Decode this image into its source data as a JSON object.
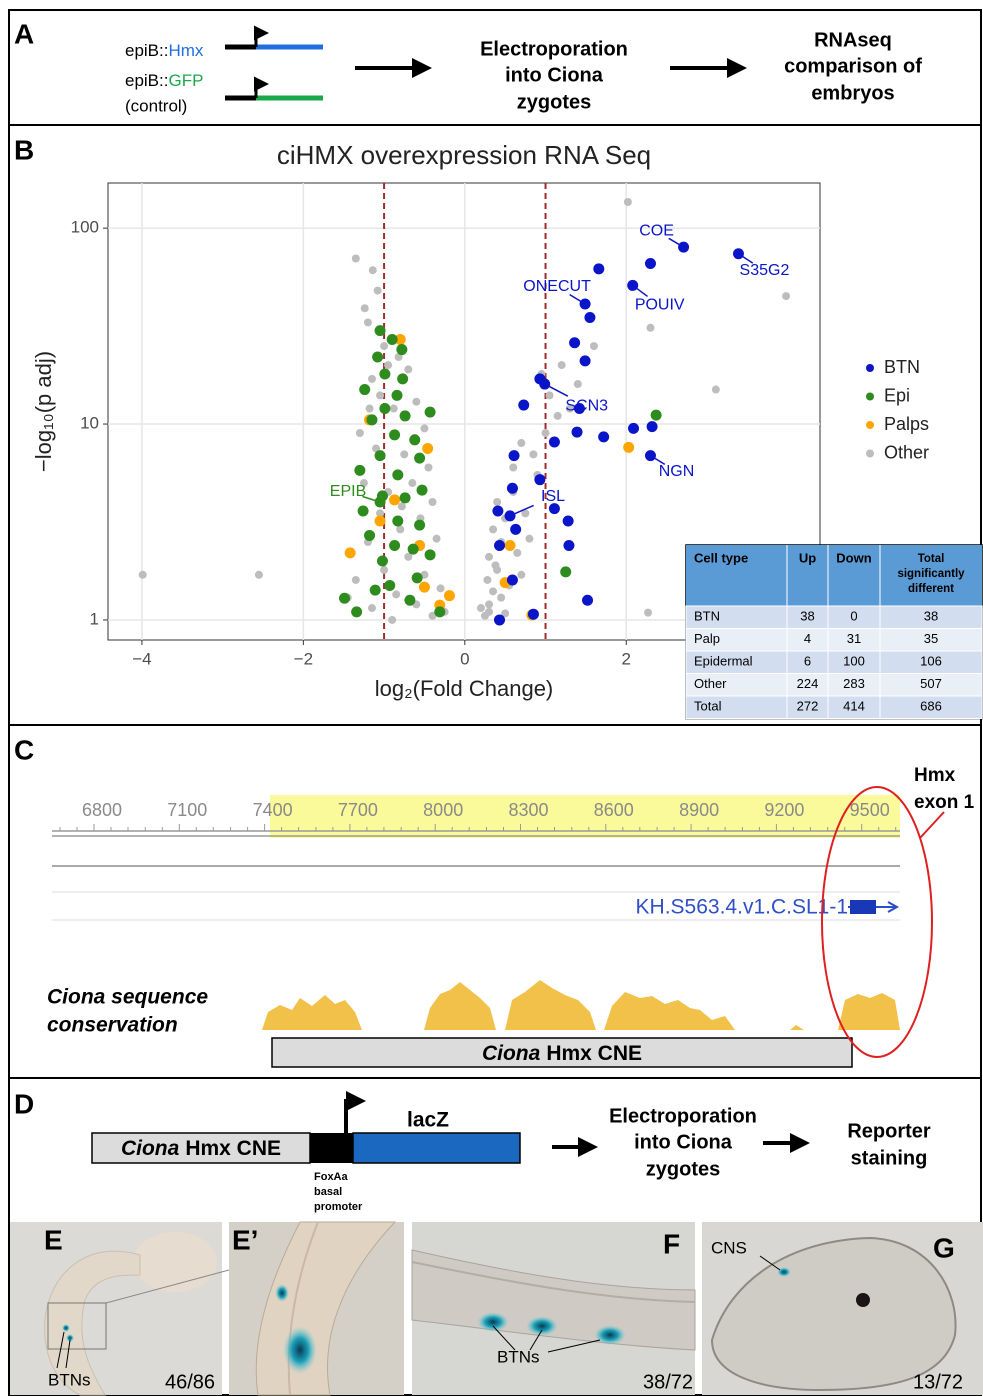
{
  "panel_a": {
    "label": "A",
    "constructs": [
      {
        "prefix": "epiB::",
        "gene": "Hmx"
      },
      {
        "prefix": "epiB::",
        "gene": "GFP",
        "note": "(control)"
      }
    ],
    "steps": [
      [
        "Electroporation",
        "into Ciona",
        "zygotes"
      ],
      [
        "RNAseq",
        "comparison of",
        "embryos"
      ]
    ]
  },
  "panel_b": {
    "label": "B",
    "chart_data": {
      "type": "scatter",
      "title": "ciHMX overexpression RNA Seq",
      "x_label": "log₂(Fold Change)",
      "y_label": "−log₁₀(p adj)",
      "xlim": [
        -4.42,
        4.4
      ],
      "ylim": [
        0.79,
        170
      ],
      "y_scale": "log",
      "grid": true,
      "legend": "right",
      "xticks": [
        {
          "value": -4,
          "label": "−4"
        },
        {
          "value": -2,
          "label": "−2"
        },
        0,
        2
      ],
      "yticks": [
        1,
        10,
        100
      ],
      "vlines": [
        -1,
        1
      ],
      "vline_color": "#a52a2a",
      "series": [
        {
          "name": "BTN",
          "color": "#0a14c8",
          "x": [
            2.71,
            3.39,
            2.3,
            1.66,
            2.08,
            1.49,
            1.55,
            1.36,
            1.49,
            0.99,
            0.93,
            0.73,
            1.42,
            1.39,
            1.72,
            2.09,
            2.32,
            2.3,
            0.61,
            1.11,
            0.59,
            0.41,
            0.56,
            0.93,
            1.28,
            0.63,
            0.43,
            1.29,
            0.59,
            0.85,
            0.43,
            1.52,
            1.11
          ],
          "y": [
            80,
            74,
            66,
            62,
            51,
            41,
            35,
            26,
            21,
            16,
            17,
            12.5,
            12,
            9.1,
            8.6,
            9.5,
            9.7,
            6.9,
            6.9,
            8.1,
            4.7,
            3.6,
            3.4,
            5.2,
            3.2,
            2.9,
            2.4,
            2.4,
            1.6,
            1.07,
            1.0,
            1.26,
            3.7
          ]
        },
        {
          "name": "Epi",
          "color": "#2e8b1e",
          "x": [
            -1.05,
            -0.9,
            -1.08,
            -0.78,
            -0.99,
            -0.77,
            -1.24,
            -0.84,
            -0.99,
            -0.74,
            -1.15,
            -0.43,
            -0.87,
            -0.62,
            -1.05,
            -0.56,
            -1.3,
            -0.83,
            -1.02,
            -0.74,
            -0.53,
            -1.26,
            -0.83,
            -0.56,
            -1.18,
            -0.87,
            -0.64,
            -1.02,
            -0.43,
            -1.49,
            -1.11,
            -1.34,
            -0.68,
            -0.31,
            -0.59,
            -0.93,
            2.37,
            1.25,
            -1.05
          ],
          "y": [
            30,
            27,
            22,
            24,
            18,
            17,
            15,
            14,
            12,
            11,
            10.5,
            11.5,
            8.8,
            8.3,
            6.9,
            6.7,
            5.8,
            5.5,
            4.3,
            4.2,
            4.6,
            3.6,
            3.2,
            3.05,
            2.7,
            2.4,
            2.3,
            2.0,
            2.15,
            1.29,
            1.42,
            1.1,
            1.26,
            1.1,
            1.64,
            1.5,
            11.1,
            1.76,
            4.0
          ]
        },
        {
          "name": "Palps",
          "color": "#ffa500",
          "x": [
            -0.8,
            -1.18,
            -0.46,
            -1.05,
            -0.56,
            -1.42,
            -0.87,
            -0.31,
            -0.19,
            -0.5,
            2.03,
            0.56,
            0.5,
            0.83
          ],
          "y": [
            27,
            10.5,
            7.5,
            3.2,
            2.4,
            2.2,
            4.1,
            1.19,
            1.33,
            1.47,
            7.6,
            2.4,
            1.55,
            1.06
          ]
        },
        {
          "name": "Other",
          "color": "#bdbdbd",
          "x": [
            -1.35,
            -1.08,
            -1.24,
            -1.14,
            -1.2,
            -1.0,
            -0.95,
            -1.15,
            -0.7,
            -0.88,
            -1.3,
            -0.6,
            -0.5,
            -1.1,
            -0.75,
            -0.45,
            -1.25,
            -0.65,
            -0.95,
            -0.4,
            -1.05,
            -0.55,
            -0.8,
            -1.2,
            -0.35,
            -0.7,
            -1.0,
            -0.5,
            -1.35,
            -0.3,
            -0.85,
            -0.6,
            -1.15,
            -0.4,
            -0.9,
            -0.25,
            -1.45,
            -0.78,
            -0.62,
            -1.05,
            -0.82,
            -1.18,
            0.25,
            0.3,
            0.35,
            0.28,
            0.4,
            0.3,
            0.45,
            0.35,
            0.5,
            0.4,
            0.6,
            0.3,
            0.45,
            0.55,
            0.7,
            0.65,
            0.8,
            0.75,
            0.9,
            0.85,
            1.0,
            1.15,
            1.05,
            0.95,
            1.2,
            1.4,
            1.3,
            1.6,
            0.2,
            0.5,
            0.38,
            0.6,
            0.7,
            -3.99,
            -2.55,
            2.02,
            3.98,
            2.3,
            3.11,
            2.27
          ],
          "y": [
            70,
            48,
            39,
            61,
            33,
            25,
            20,
            17,
            19,
            12,
            9,
            13,
            9.5,
            7.5,
            7,
            6,
            5,
            5,
            4.5,
            4,
            3.5,
            3.3,
            2.9,
            2.5,
            2.6,
            2.1,
            1.8,
            1.7,
            1.6,
            1.45,
            1.35,
            1.2,
            1.15,
            1.05,
            1.0,
            1.1,
            1.3,
            3.8,
            8.5,
            14,
            22,
            12,
            1.05,
            1.2,
            1.4,
            1.6,
            1.8,
            2.1,
            2.5,
            2.9,
            3.3,
            4.0,
            4.5,
            1.1,
            1.3,
            1.5,
            1.7,
            2.2,
            2.6,
            3.5,
            5.5,
            7,
            9,
            11,
            14,
            18,
            20,
            16,
            12,
            25,
            1.15,
            1.08,
            1.9,
            6,
            8,
            1.7,
            1.7,
            136,
            45,
            31,
            15,
            1.09
          ]
        }
      ],
      "annotations": [
        {
          "text": "COE",
          "x": 2.71,
          "y": 80,
          "color": "#0a14c8"
        },
        {
          "text": "S35G2",
          "x": 3.39,
          "y": 74,
          "color": "#0a14c8"
        },
        {
          "text": "ONECUT",
          "x": 1.49,
          "y": 41,
          "color": "#0a14c8"
        },
        {
          "text": "POUIV",
          "x": 2.08,
          "y": 51,
          "color": "#0a14c8"
        },
        {
          "text": "SCN3",
          "x": 0.99,
          "y": 16,
          "color": "#0a14c8"
        },
        {
          "text": "NGN",
          "x": 2.3,
          "y": 6.9,
          "color": "#0a14c8"
        },
        {
          "text": "ISL",
          "x": 0.56,
          "y": 3.4,
          "color": "#0a14c8"
        },
        {
          "text": "EPIB",
          "x": -1.05,
          "y": 4.0,
          "color": "#2e8b1e"
        }
      ]
    },
    "table": {
      "header": [
        "Cell type",
        "Up",
        "Down",
        "Total significantly different"
      ],
      "rows": [
        [
          "BTN",
          38,
          0,
          38
        ],
        [
          "Palp",
          4,
          31,
          35
        ],
        [
          "Epidermal",
          6,
          100,
          106
        ],
        [
          "Other",
          224,
          283,
          507
        ],
        [
          "Total",
          272,
          414,
          686
        ]
      ]
    }
  },
  "panel_c": {
    "label": "C",
    "ruler": [
      6800,
      7100,
      7400,
      7700,
      8000,
      8300,
      8600,
      8900,
      9200,
      9500
    ],
    "exon_label": [
      "Hmx",
      "exon 1"
    ],
    "transcript": "KH.S563.4.v1.C.SL1-1",
    "track_label": [
      "Ciona sequence",
      "conservation"
    ],
    "cne": {
      "species": "Ciona",
      "name": "Hmx CNE"
    }
  },
  "panel_d": {
    "label": "D",
    "cne": {
      "species": "Ciona",
      "name": "Hmx CNE"
    },
    "reporter": "lacZ",
    "promoter": [
      "FoxAa",
      "basal",
      "promoter"
    ],
    "steps": [
      [
        "Electroporation",
        "into Ciona",
        "zygotes"
      ],
      [
        "Reporter",
        "staining"
      ]
    ]
  },
  "images": [
    {
      "label": "E",
      "annotation": "BTNs",
      "count": "46/86"
    },
    {
      "label": "E’"
    },
    {
      "label": "F",
      "annotation": "BTNs",
      "count": "38/72"
    },
    {
      "label": "G",
      "annotation": "CNS",
      "count": "13/72"
    }
  ]
}
